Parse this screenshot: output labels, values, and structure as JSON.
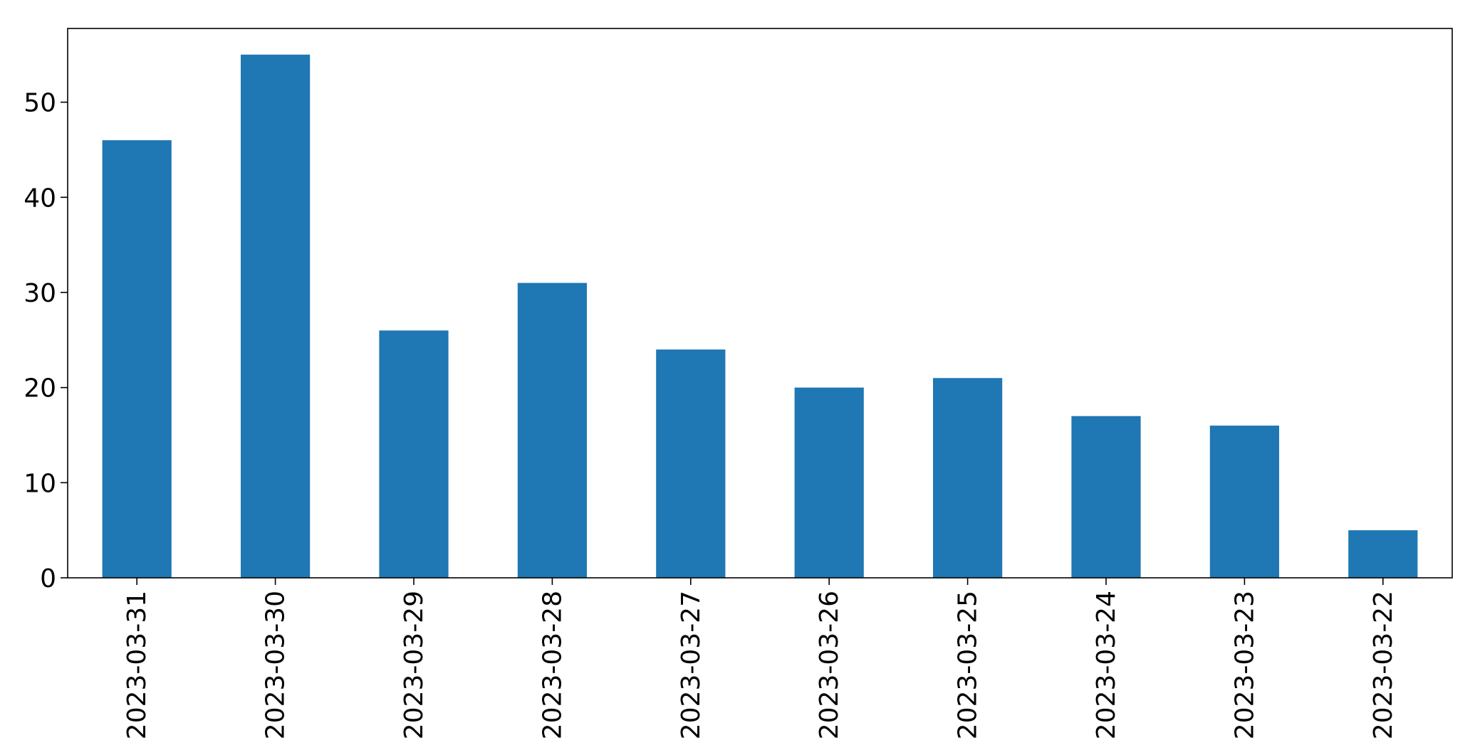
{
  "chart_data": {
    "type": "bar",
    "categories": [
      "2023-03-31",
      "2023-03-30",
      "2023-03-29",
      "2023-03-28",
      "2023-03-27",
      "2023-03-26",
      "2023-03-25",
      "2023-03-24",
      "2023-03-23",
      "2023-03-22"
    ],
    "values": [
      46,
      55,
      26,
      31,
      24,
      20,
      21,
      17,
      16,
      5
    ],
    "title": "",
    "xlabel": "",
    "ylabel": "",
    "ylim": [
      0,
      57.75
    ],
    "yticks": [
      0,
      10,
      20,
      30,
      40,
      50
    ],
    "bar_color": "#1f77b4",
    "grid": false,
    "legend": "none",
    "x_tick_rotation": "vertical"
  }
}
